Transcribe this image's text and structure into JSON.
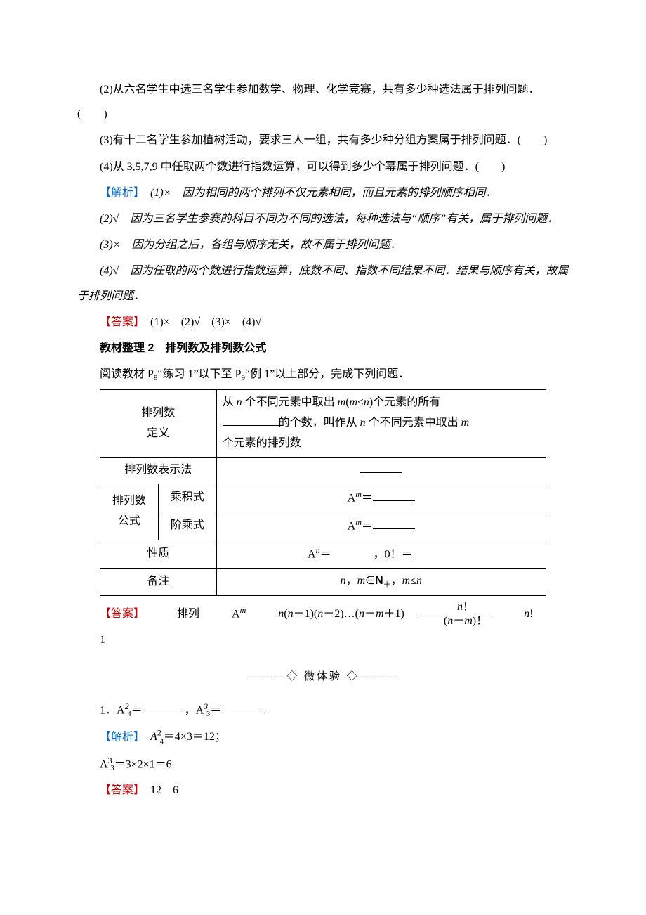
{
  "questions": {
    "q2": "(2)从六名学生中选三名学生参加数学、物理、化学竞赛，共有多少种选法属于排列问题．(　　)",
    "q3": "(3)有十二名学生参加植树活动，要求三人一组，共有多少种分组方案属于排列问题．(　　)",
    "q4": "(4)从 3,5,7,9 中任取两个数进行指数运算，可以得到多少个幂属于排列问题．(　　)"
  },
  "analysis": {
    "label": "【解析】",
    "a1": "(1)×　因为相同的两个排列不仅元素相同，而且元素的排列顺序相同．",
    "a2": "(2)√　因为三名学生参赛的科目不同为不同的选法，每种选法与“顺序”有关，属于排列问题．",
    "a3": "(3)×　因为分组之后，各组与顺序无关，故不属于排列问题．",
    "a4": "(4)√　因为任取的两个数进行指数运算，底数不同、指数不同结果不同．结果与顺序有关，故属于排列问题．"
  },
  "answer1": {
    "label": "【答案】",
    "content": "(1)×　(2)√　(3)×　(4)√"
  },
  "section2": {
    "title": "教材整理 2　排列数及排列数公式",
    "intro_part1": "阅读教材 P",
    "intro_sub1": "8",
    "intro_part2": "“练习 1”以下至 P",
    "intro_sub2": "9",
    "intro_part3": "“例 1”以上部分，完成下列问题．"
  },
  "table": {
    "row1_left": "排列数\n定义",
    "row1_right_line1_part1": "从 ",
    "row1_right_line1_n": "n",
    "row1_right_line1_part2": " 个不同元素中取出 ",
    "row1_right_line1_m": "m",
    "row1_right_line1_part3": "(",
    "row1_right_line1_part4": "≤",
    "row1_right_line1_part5": ")个元素的所有",
    "row1_right_line2_part1": "的个数，叫作从 ",
    "row1_right_line2_part2": " 个不同元素中取出 ",
    "row1_right_line3": "个元素的排列数",
    "row2_left": "排列数表示法",
    "row3_left1": "排列数\n公式",
    "row3_left2_a": "乘积式",
    "row3_left2_b": "阶乘式",
    "row3_right_a": "A",
    "row4_left": "性质",
    "row4_right_part1": "A",
    "row4_right_part2": "＝",
    "row4_right_part3": "，0！＝",
    "row5_left": "备注",
    "row5_right_part1": "n",
    "row5_right_part2": "，",
    "row5_right_part3": "m",
    "row5_right_part4": "∈",
    "row5_right_part5": "N",
    "row5_right_sub": "＋",
    "row5_right_part6": "，",
    "row5_right_part7": "m",
    "row5_right_part8": "≤",
    "row5_right_part9": "n"
  },
  "answer2": {
    "label": "【答案】",
    "item1": "排列",
    "item2_a": "A",
    "item3_part1": "n",
    "item3_part2": "(",
    "item3_part3": "－1)(",
    "item3_part4": "－2)…(",
    "item3_part5": "－",
    "item3_part6": "＋1)",
    "frac_num_n": "n",
    "frac_num_excl": "！",
    "frac_den_part1": "(",
    "frac_den_n": "n",
    "frac_den_part2": "－",
    "frac_den_m": "m",
    "frac_den_part3": ")！",
    "item5_n": "n",
    "item5_excl": "!",
    "item6": "1"
  },
  "divider": "———◇ 微体验 ◇———",
  "exercise1": {
    "q_part1": "1．A",
    "q_part2": "＝",
    "q_part3": "，A",
    "q_part4": "＝",
    "q_part5": ".",
    "analysis_label": "【解析】",
    "analysis_line1": "A",
    "analysis_line1_rest": "＝4×3＝12；",
    "analysis_line2": "A",
    "analysis_line2_rest": "＝3×2×1＝6.",
    "answer_label": "【答案】",
    "answer_content": "12　6"
  },
  "colors": {
    "text": "#000000",
    "analysis": "#0066cc",
    "answer": "#cc0000",
    "background": "#ffffff",
    "border": "#000000"
  }
}
